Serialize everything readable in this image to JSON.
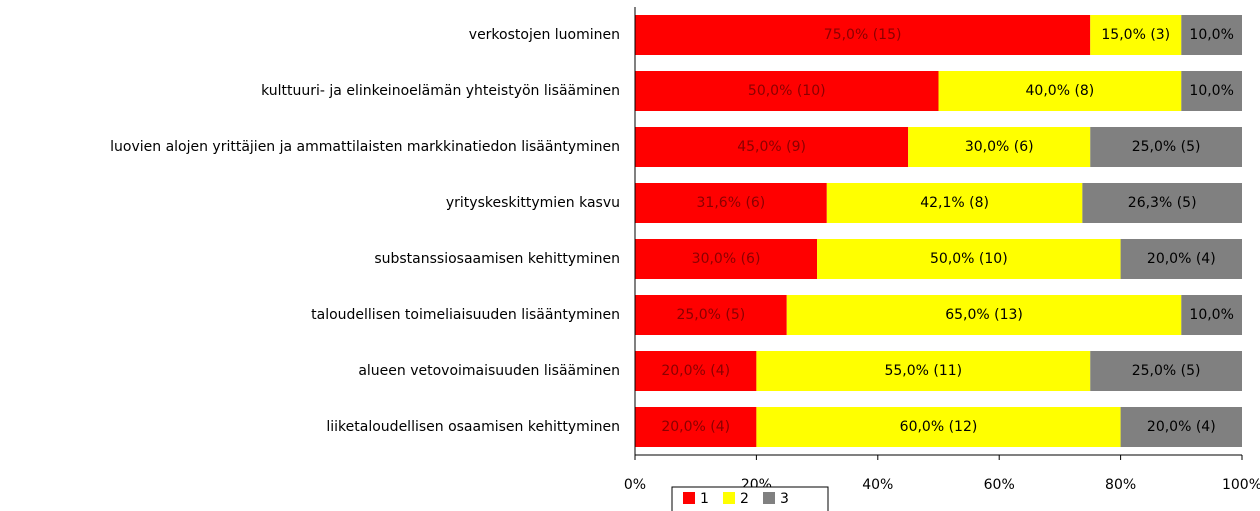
{
  "chart_data": {
    "type": "stacked_bar_horizontal",
    "categories": [
      "verkostojen luominen",
      "kulttuuri- ja elinkeinoelämän yhteistyön lisääminen",
      "luovien alojen yrittäjien  ja ammattilaisten markkinatiedon  lisääntyminen",
      "yrityskeskittymien kasvu",
      "substanssiosaamisen kehittyminen",
      "taloudellisen toimeliaisuuden lisääntyminen",
      "alueen vetovoimaisuuden lisääminen",
      "liiketaloudellisen osaamisen kehittyminen"
    ],
    "series": [
      {
        "name": "1",
        "color": "#ff0000",
        "label_color": "#8b0000",
        "values": [
          75,
          50,
          45,
          31.6,
          30,
          25,
          20,
          20
        ],
        "value_labels": [
          "75,0% (15)",
          "50,0% (10)",
          "45,0% (9)",
          "31,6% (6)",
          "30,0% (6)",
          "25,0% (5)",
          "20,0% (4)",
          "20,0% (4)"
        ]
      },
      {
        "name": "2",
        "color": "#ffff00",
        "label_color": "#000000",
        "values": [
          15,
          40,
          30,
          42.1,
          50,
          65,
          55,
          60
        ],
        "value_labels": [
          "15,0% (3)",
          "40,0% (8)",
          "30,0% (6)",
          "42,1% (8)",
          "50,0% (10)",
          "65,0% (13)",
          "55,0% (11)",
          "60,0% (12)"
        ]
      },
      {
        "name": "3",
        "color": "#808080",
        "label_color": "#000000",
        "values": [
          10,
          10,
          25,
          26.3,
          20,
          10,
          25,
          20
        ],
        "value_labels": [
          "10,0%",
          "10,0%",
          "25,0% (5)",
          "26,3% (5)",
          "20,0% (4)",
          "10,0%",
          "25,0% (5)",
          "20,0% (4)"
        ]
      }
    ],
    "xlim": [
      0,
      100
    ],
    "xticks": [
      {
        "value": 0,
        "label": "0%"
      },
      {
        "value": 20,
        "label": "20%"
      },
      {
        "value": 40,
        "label": "40%"
      },
      {
        "value": 60,
        "label": "60%"
      },
      {
        "value": 80,
        "label": "80%"
      },
      {
        "value": 100,
        "label": "100%"
      }
    ],
    "legend": "bottom"
  }
}
